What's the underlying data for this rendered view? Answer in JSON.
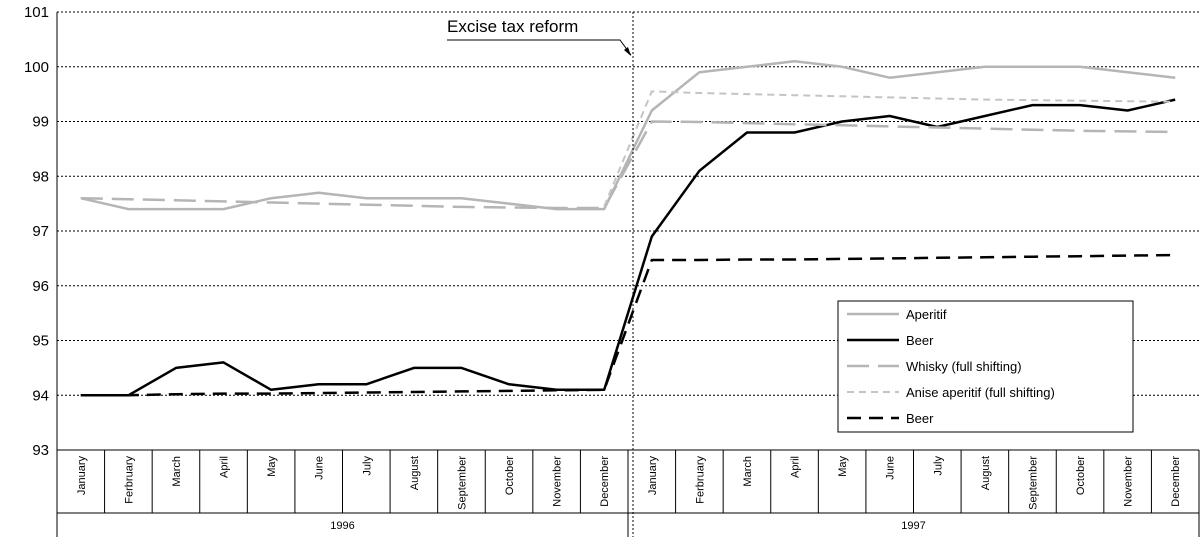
{
  "chart_data": {
    "type": "line",
    "title": "",
    "xlabel": "",
    "ylabel": "",
    "ylim": [
      93,
      101
    ],
    "yticks": [
      93,
      94,
      95,
      96,
      97,
      98,
      99,
      100,
      101
    ],
    "grid": "horizontal dashed",
    "legend_position": "bottom-right",
    "years": [
      "1996",
      "1997"
    ],
    "months": [
      "January",
      "Ferbruary",
      "March",
      "April",
      "May",
      "June",
      "July",
      "August",
      "September",
      "October",
      "November",
      "December",
      "January",
      "Ferbruary",
      "March",
      "April",
      "May",
      "June",
      "July",
      "August",
      "September",
      "October",
      "November",
      "December"
    ],
    "annotation": "Excise tax reform",
    "series": [
      {
        "name": "Aperitif",
        "color": "#b5b5b5",
        "style": "solid",
        "values": [
          97.6,
          97.4,
          97.4,
          97.4,
          97.6,
          97.7,
          97.6,
          97.6,
          97.6,
          97.5,
          97.4,
          97.4,
          99.2,
          99.9,
          100.0,
          100.1,
          100.0,
          99.8,
          99.9,
          100.0,
          100.0,
          100.0,
          99.9,
          99.8
        ]
      },
      {
        "name": "Beer",
        "color": "#000000",
        "style": "solid",
        "values": [
          94.0,
          94.0,
          94.5,
          94.6,
          94.1,
          94.2,
          94.2,
          94.5,
          94.5,
          94.2,
          94.1,
          94.1,
          96.9,
          98.1,
          98.8,
          98.8,
          99.0,
          99.1,
          98.9,
          99.1,
          99.3,
          99.3,
          99.2,
          99.4
        ]
      },
      {
        "name": "Whisky (full shifting)",
        "color": "#b5b5b5",
        "style": "longdash",
        "values": [
          97.6,
          97.58,
          97.56,
          97.54,
          97.52,
          97.5,
          97.48,
          97.46,
          97.44,
          97.43,
          97.42,
          97.42,
          99.0,
          98.99,
          98.97,
          98.95,
          98.93,
          98.91,
          98.89,
          98.87,
          98.85,
          98.83,
          98.82,
          98.81
        ]
      },
      {
        "name": "Anise aperitif (full shifting)",
        "color": "#c4c4c4",
        "style": "shortdash",
        "values": [
          null,
          null,
          null,
          null,
          null,
          null,
          null,
          null,
          null,
          null,
          null,
          97.45,
          99.55,
          99.52,
          99.5,
          99.48,
          99.46,
          99.44,
          99.42,
          99.4,
          99.39,
          99.38,
          99.37,
          99.36
        ]
      },
      {
        "name": "Beer",
        "color": "#000000",
        "style": "dash",
        "values": [
          94.0,
          94.0,
          94.02,
          94.03,
          94.03,
          94.04,
          94.05,
          94.06,
          94.07,
          94.08,
          94.09,
          94.1,
          96.47,
          96.47,
          96.48,
          96.48,
          96.49,
          96.5,
          96.51,
          96.52,
          96.53,
          96.54,
          96.55,
          96.56
        ]
      }
    ]
  }
}
